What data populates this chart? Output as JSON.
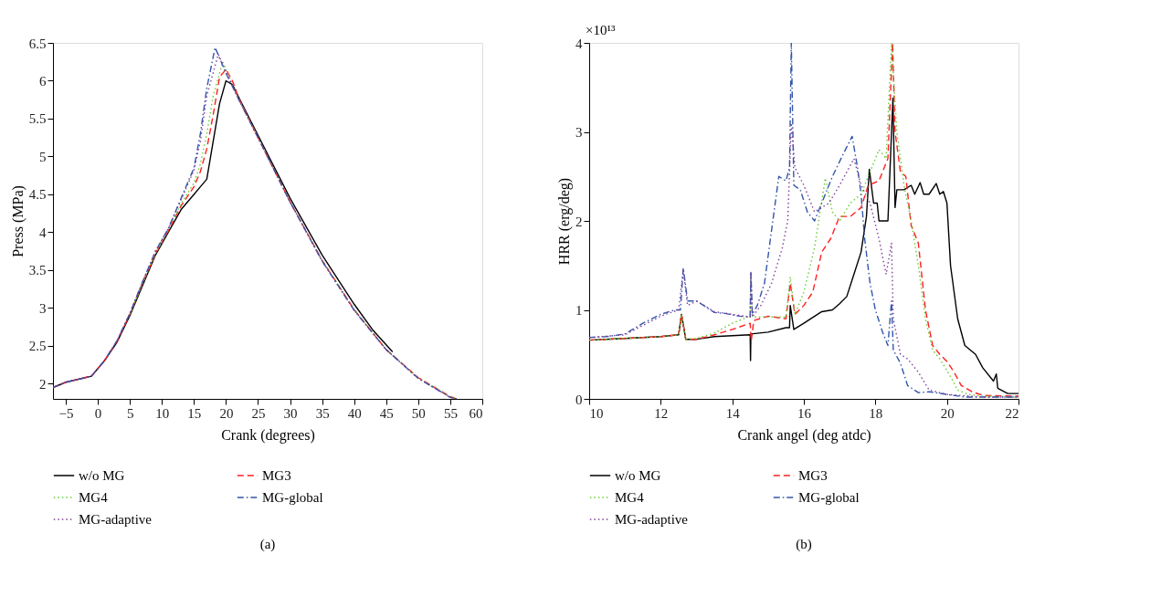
{
  "chart_data": [
    {
      "type": "line",
      "xlabel": "Crank (degrees)",
      "ylabel": "Press (MPa)",
      "xlim": [
        -7,
        60
      ],
      "ylim": [
        1.8,
        6.5
      ],
      "xticks": [
        -5,
        0,
        5,
        10,
        15,
        20,
        25,
        30,
        35,
        40,
        45,
        50,
        55,
        60
      ],
      "yticks": [
        2,
        2.5,
        3,
        3.5,
        4,
        4.5,
        5,
        5.5,
        6,
        6.5
      ],
      "grid": false,
      "legend": "bottom",
      "annotations": [
        "(a)"
      ],
      "series": [
        {
          "name": "w/o MG",
          "color": "#000000",
          "line_style": "solid",
          "x": [
            -7,
            -5,
            -2,
            -1,
            0,
            1,
            3,
            5,
            7,
            9,
            11,
            13,
            15,
            16,
            17,
            18,
            19,
            20,
            21,
            22,
            25,
            30,
            35,
            40,
            43,
            46
          ],
          "values": [
            1.95,
            2.02,
            2.08,
            2.1,
            2.2,
            2.3,
            2.55,
            2.9,
            3.3,
            3.7,
            4.0,
            4.3,
            4.5,
            4.6,
            4.7,
            5.2,
            5.7,
            6.0,
            5.95,
            5.78,
            5.28,
            4.45,
            3.7,
            3.05,
            2.7,
            2.42
          ]
        },
        {
          "name": "MG3",
          "color": "#ff2020",
          "line_style": "dashed",
          "x": [
            -7,
            -5,
            -2,
            -1,
            0,
            1,
            3,
            5,
            7,
            9,
            11,
            13,
            15,
            16,
            17,
            18,
            19,
            20,
            21,
            22,
            25,
            30,
            35,
            40,
            45,
            50,
            55,
            56
          ],
          "values": [
            1.95,
            2.02,
            2.08,
            2.1,
            2.2,
            2.3,
            2.56,
            2.92,
            3.33,
            3.72,
            4.02,
            4.35,
            4.6,
            4.8,
            5.1,
            5.55,
            6.05,
            6.15,
            6.0,
            5.77,
            5.25,
            4.4,
            3.63,
            2.98,
            2.45,
            2.08,
            1.83,
            1.8
          ]
        },
        {
          "name": "MG4",
          "color": "#66cc33",
          "line_style": "dotted",
          "x": [
            5,
            7,
            9,
            11,
            13,
            15,
            16,
            17,
            18,
            19.5,
            20.5,
            22,
            25,
            30,
            35,
            40,
            45,
            50,
            55,
            56
          ],
          "values": [
            2.92,
            3.33,
            3.72,
            4.03,
            4.38,
            4.65,
            4.9,
            5.3,
            5.8,
            6.25,
            6.05,
            5.75,
            5.25,
            4.4,
            3.63,
            2.98,
            2.45,
            2.08,
            1.83,
            1.8
          ]
        },
        {
          "name": "MG-global",
          "color": "#3355aa",
          "line_style": "dashdot",
          "x": [
            -7,
            -5,
            -2,
            -1,
            0,
            1,
            3,
            5,
            7,
            9,
            11,
            13,
            15,
            16,
            17,
            18.3,
            19,
            20,
            22,
            25,
            30,
            35,
            40,
            45,
            50,
            55,
            56
          ],
          "values": [
            1.95,
            2.02,
            2.08,
            2.1,
            2.2,
            2.3,
            2.57,
            2.93,
            3.35,
            3.75,
            4.05,
            4.45,
            4.85,
            5.3,
            5.9,
            6.44,
            6.3,
            6.1,
            5.75,
            5.25,
            4.4,
            3.62,
            2.97,
            2.45,
            2.07,
            1.82,
            1.8
          ]
        },
        {
          "name": "MG-adaptive",
          "color": "#7f3f98",
          "line_style": "dotted",
          "x": [
            -7,
            -5,
            -2,
            -1,
            0,
            1,
            3,
            5,
            7,
            9,
            11,
            13,
            15,
            16,
            17,
            18.8,
            20,
            22,
            25,
            30,
            35,
            40,
            45,
            50,
            55,
            56
          ],
          "values": [
            1.95,
            2.02,
            2.08,
            2.1,
            2.2,
            2.3,
            2.57,
            2.93,
            3.35,
            3.75,
            4.05,
            4.43,
            4.82,
            5.2,
            5.8,
            6.35,
            6.12,
            5.75,
            5.25,
            4.4,
            3.62,
            2.97,
            2.45,
            2.07,
            1.82,
            1.8
          ]
        }
      ]
    },
    {
      "type": "line",
      "xlabel": "Crank angel (deg atdc)",
      "ylabel": "HRR (erg/deg)",
      "xlim": [
        10,
        22
      ],
      "ylim": [
        0,
        4
      ],
      "xticks": [
        10,
        12,
        14,
        16,
        18,
        20,
        22
      ],
      "yticks": [
        0,
        1,
        2,
        3,
        4
      ],
      "grid": false,
      "legend": "bottom",
      "annotations": [
        "×10¹³",
        "(b)"
      ],
      "series": [
        {
          "name": "w/o MG",
          "color": "#000000",
          "line_style": "solid",
          "x": [
            10,
            11,
            12,
            12.5,
            12.58,
            12.7,
            13,
            13.5,
            14,
            14.5,
            14.51,
            14.52,
            15,
            15.5,
            15.6,
            15.62,
            15.72,
            16,
            16.5,
            16.8,
            17,
            17.2,
            17.4,
            17.6,
            17.75,
            17.83,
            17.95,
            18.05,
            18.1,
            18.2,
            18.35,
            18.49,
            18.55,
            18.6,
            18.8,
            19,
            19.1,
            19.25,
            19.35,
            19.5,
            19.7,
            19.8,
            19.9,
            20,
            20.1,
            20.3,
            20.5,
            20.8,
            21,
            21.3,
            21.38,
            21.42,
            21.7,
            22
          ],
          "values": [
            0.66,
            0.68,
            0.7,
            0.72,
            0.95,
            0.67,
            0.67,
            0.7,
            0.71,
            0.72,
            0.43,
            0.73,
            0.75,
            0.8,
            0.8,
            1.05,
            0.78,
            0.85,
            0.98,
            1.0,
            1.07,
            1.15,
            1.4,
            1.65,
            2.05,
            2.58,
            2.2,
            2.2,
            2.0,
            2.0,
            2.0,
            3.38,
            2.15,
            2.35,
            2.35,
            2.4,
            2.3,
            2.43,
            2.3,
            2.3,
            2.42,
            2.3,
            2.33,
            2.2,
            1.5,
            0.9,
            0.6,
            0.5,
            0.35,
            0.2,
            0.28,
            0.12,
            0.06,
            0.06
          ]
        },
        {
          "name": "MG3",
          "color": "#ff2020",
          "line_style": "dashed",
          "x": [
            10,
            11,
            12,
            12.5,
            12.58,
            12.7,
            13,
            13.5,
            14,
            14.5,
            14.53,
            14.6,
            15,
            15.5,
            15.62,
            15.75,
            16,
            16.25,
            16.5,
            16.75,
            17,
            17.3,
            17.6,
            17.8,
            18.1,
            18.35,
            18.48,
            18.55,
            18.7,
            18.85,
            19,
            19.2,
            19.4,
            19.6,
            19.8,
            20,
            20.2,
            20.4,
            20.7,
            21,
            22
          ],
          "values": [
            0.66,
            0.68,
            0.7,
            0.72,
            0.95,
            0.67,
            0.67,
            0.72,
            0.78,
            0.85,
            0.65,
            0.88,
            0.93,
            0.9,
            1.3,
            0.95,
            1.05,
            1.2,
            1.65,
            1.8,
            2.05,
            2.05,
            2.15,
            2.4,
            2.45,
            2.7,
            4.0,
            3.0,
            2.55,
            2.5,
            1.95,
            1.75,
            1.0,
            0.6,
            0.5,
            0.42,
            0.3,
            0.15,
            0.08,
            0.04,
            0.03
          ]
        },
        {
          "name": "MG4",
          "color": "#66cc33",
          "line_style": "dotted",
          "x": [
            10,
            11,
            12,
            12.5,
            12.58,
            12.7,
            13,
            13.5,
            14,
            14.5,
            14.52,
            14.56,
            15,
            15.5,
            15.62,
            15.75,
            16,
            16.3,
            16.6,
            16.8,
            17,
            17.3,
            17.6,
            17.9,
            18.1,
            18.3,
            18.45,
            18.6,
            18.8,
            19,
            19.2,
            19.4,
            19.6,
            19.8,
            20.1,
            20.3,
            20.6,
            21,
            22
          ],
          "values": [
            0.66,
            0.68,
            0.7,
            0.72,
            0.95,
            0.67,
            0.68,
            0.74,
            0.85,
            0.93,
            1.4,
            0.92,
            0.92,
            0.92,
            1.37,
            0.95,
            1.2,
            1.7,
            2.48,
            2.1,
            2.0,
            2.2,
            2.3,
            2.6,
            2.8,
            2.7,
            4.0,
            3.0,
            2.4,
            2.0,
            1.5,
            0.9,
            0.55,
            0.45,
            0.25,
            0.1,
            0.05,
            0.03,
            0.02
          ]
        },
        {
          "name": "MG-global",
          "color": "#3355aa",
          "line_style": "dashdot",
          "x": [
            10,
            10.5,
            11,
            11.5,
            12,
            12.4,
            12.55,
            12.63,
            12.75,
            13,
            13.2,
            13.5,
            13.8,
            14.2,
            14.5,
            14.52,
            14.56,
            14.7,
            14.9,
            15.1,
            15.3,
            15.5,
            15.6,
            15.65,
            15.72,
            15.9,
            16.1,
            16.3,
            16.5,
            16.8,
            17.1,
            17.35,
            17.5,
            17.6,
            17.7,
            17.85,
            18,
            18.2,
            18.35,
            18.45,
            18.5,
            18.7,
            18.9,
            19.2,
            19.5,
            20,
            20.5,
            21,
            22
          ],
          "values": [
            0.69,
            0.7,
            0.73,
            0.85,
            0.95,
            1.0,
            1.0,
            1.47,
            1.1,
            1.1,
            1.05,
            0.97,
            0.96,
            0.93,
            0.92,
            1.42,
            0.95,
            1.05,
            1.3,
            1.9,
            2.5,
            2.45,
            2.6,
            4.0,
            2.4,
            2.35,
            2.1,
            2.0,
            2.2,
            2.5,
            2.75,
            2.95,
            2.6,
            2.3,
            1.8,
            1.3,
            1.0,
            0.75,
            0.6,
            1.1,
            0.55,
            0.4,
            0.15,
            0.07,
            0.08,
            0.05,
            0.02,
            0.02,
            0.02
          ]
        },
        {
          "name": "MG-adaptive",
          "color": "#7f3f98",
          "line_style": "dotted",
          "x": [
            10,
            11,
            12,
            12.5,
            12.63,
            12.75,
            13,
            13.5,
            14,
            14.5,
            14.52,
            14.56,
            14.8,
            15.1,
            15.4,
            15.55,
            15.65,
            15.75,
            16,
            16.3,
            16.7,
            17,
            17.4,
            17.6,
            17.85,
            18.1,
            18.3,
            18.45,
            18.5,
            18.7,
            18.9,
            19.2,
            19.5,
            20,
            21,
            22
          ],
          "values": [
            0.69,
            0.72,
            0.93,
            1.0,
            1.45,
            1.05,
            1.1,
            0.98,
            0.95,
            0.92,
            1.42,
            0.92,
            1.05,
            1.3,
            1.7,
            2.0,
            3.1,
            2.6,
            2.4,
            2.1,
            2.2,
            2.4,
            2.7,
            2.4,
            2.2,
            1.8,
            1.4,
            1.75,
            0.9,
            0.5,
            0.45,
            0.3,
            0.1,
            0.05,
            0.02,
            0.02
          ]
        }
      ]
    }
  ]
}
